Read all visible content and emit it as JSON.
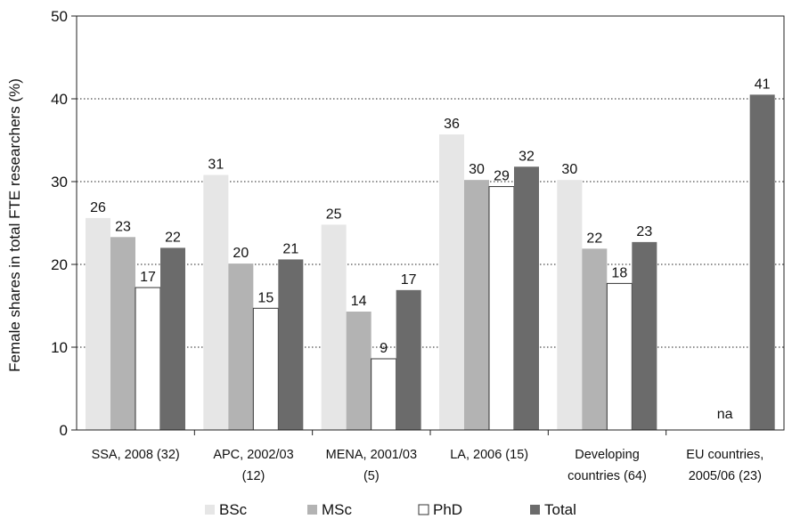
{
  "chart_data": {
    "type": "bar",
    "ylabel": "Female shares in total FTE researchers (%)",
    "ylim": [
      0,
      50
    ],
    "yticks": [
      0,
      10,
      20,
      30,
      40,
      50
    ],
    "grid": "horizontal dotted",
    "legend_position": "bottom",
    "categories": [
      [
        "SSA, 2008 (32)"
      ],
      [
        "APC, 2002/03",
        "(12)"
      ],
      [
        "MENA, 2001/03",
        "(5)"
      ],
      [
        "LA, 2006 (15)"
      ],
      [
        "Developing",
        "countries (64)"
      ],
      [
        "EU countries,",
        "2005/06 (23)"
      ]
    ],
    "series": [
      {
        "name": "BSc",
        "color": "#e6e6e6",
        "values": [
          25.6,
          30.8,
          24.8,
          35.7,
          30.2,
          null
        ],
        "labels": [
          "26",
          "31",
          "25",
          "36",
          "30",
          ""
        ]
      },
      {
        "name": "MSc",
        "color": "#b3b3b3",
        "values": [
          23.3,
          20.1,
          14.3,
          30.2,
          21.9,
          null
        ],
        "labels": [
          "23",
          "20",
          "14",
          "30",
          "22",
          ""
        ]
      },
      {
        "name": "PhD",
        "color": "#ffffff",
        "values": [
          17.2,
          14.7,
          8.6,
          29.4,
          17.7,
          null
        ],
        "labels": [
          "17",
          "15",
          "9",
          "29",
          "18",
          ""
        ]
      },
      {
        "name": "Total",
        "color": "#6b6b6b",
        "values": [
          22.0,
          20.6,
          16.9,
          31.8,
          22.7,
          40.5
        ],
        "labels": [
          "22",
          "21",
          "17",
          "32",
          "23",
          "41"
        ]
      }
    ],
    "annotations": [
      {
        "category_index": 5,
        "text": "na"
      }
    ]
  }
}
